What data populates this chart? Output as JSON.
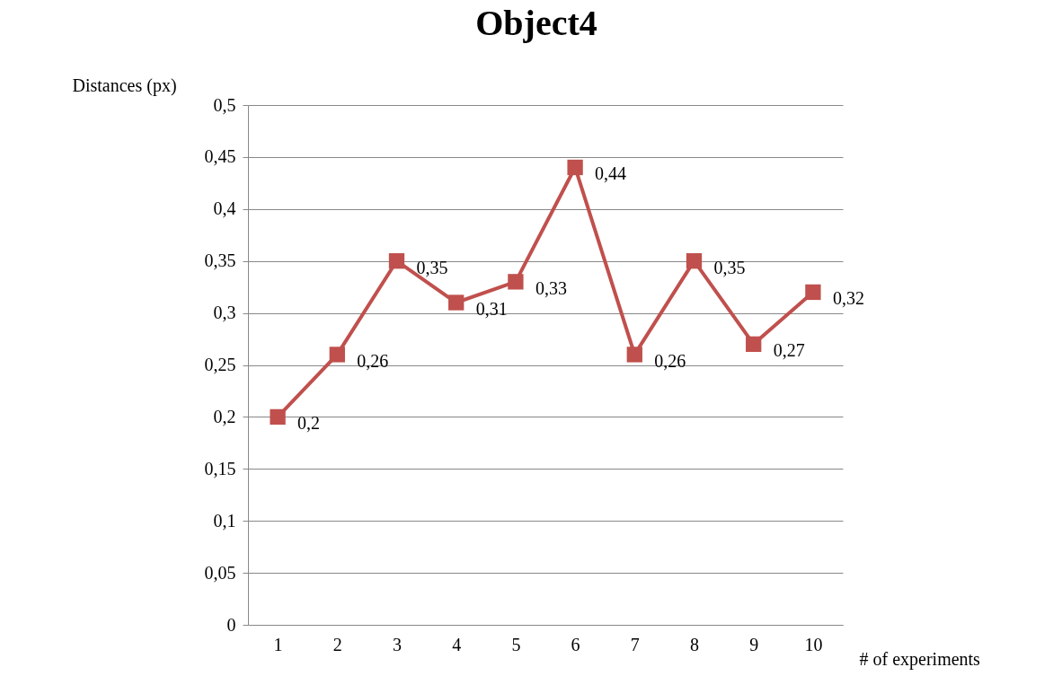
{
  "chart_data": {
    "type": "line",
    "title": "Object4",
    "xlabel": "# of experiments",
    "ylabel": "Distances (px)",
    "categories": [
      "1",
      "2",
      "3",
      "4",
      "5",
      "6",
      "7",
      "8",
      "9",
      "10"
    ],
    "series": [
      {
        "color": "#c0504d",
        "values": [
          0.2,
          0.26,
          0.35,
          0.31,
          0.33,
          0.44,
          0.26,
          0.35,
          0.27,
          0.32
        ],
        "value_labels": [
          "0,2",
          "0,26",
          "0,35",
          "0,31",
          "0,33",
          "0,44",
          "0,26",
          "0,35",
          "0,27",
          "0,32"
        ]
      }
    ],
    "ylim": [
      0,
      0.5
    ],
    "yticks": [
      {
        "value": 0,
        "label": "0"
      },
      {
        "value": 0.05,
        "label": "0,05"
      },
      {
        "value": 0.1,
        "label": "0,1"
      },
      {
        "value": 0.15,
        "label": "0,15"
      },
      {
        "value": 0.2,
        "label": "0,2"
      },
      {
        "value": 0.25,
        "label": "0,25"
      },
      {
        "value": 0.3,
        "label": "0,3"
      },
      {
        "value": 0.35,
        "label": "0,35"
      },
      {
        "value": 0.4,
        "label": "0,4"
      },
      {
        "value": 0.45,
        "label": "0,45"
      },
      {
        "value": 0.5,
        "label": "0,5"
      }
    ],
    "grid": "y",
    "marker": "square"
  }
}
